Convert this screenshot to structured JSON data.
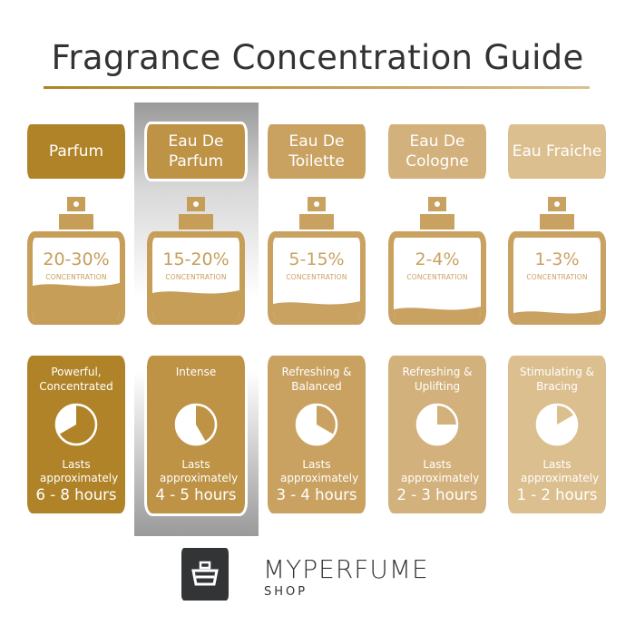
{
  "title": "Fragrance Concentration Guide",
  "columns": [
    {
      "name": "Parfum",
      "concentration": "20-30%",
      "concentration_label": "CONCENTRATION",
      "character": "Powerful, Concentrated",
      "lasts_label": "Lasts approximately",
      "duration": "6 - 8 hours",
      "duration_max_hours": 8,
      "color": "#b08328",
      "bottle_color": "#c69e58",
      "selected": false
    },
    {
      "name": "Eau De Parfum",
      "concentration": "15-20%",
      "concentration_label": "CONCENTRATION",
      "character": "Intense",
      "lasts_label": "Lasts approximately",
      "duration": "4 - 5 hours",
      "duration_max_hours": 5,
      "color": "#be9346",
      "bottle_color": "#c69e58",
      "selected": true
    },
    {
      "name": "Eau De Toilette",
      "concentration": "5-15%",
      "concentration_label": "CONCENTRATION",
      "character": "Refreshing & Balanced",
      "lasts_label": "Lasts approximately",
      "duration": "3 - 4 hours",
      "duration_max_hours": 4,
      "color": "#c9a262",
      "bottle_color": "#c9a262",
      "selected": false
    },
    {
      "name": "Eau De Cologne",
      "concentration": "2-4%",
      "concentration_label": "CONCENTRATION",
      "character": "Refreshing & Uplifting",
      "lasts_label": "Lasts approximately",
      "duration": "2 - 3 hours",
      "duration_max_hours": 3,
      "color": "#d3b17c",
      "bottle_color": "#c9a262",
      "selected": false
    },
    {
      "name": "Eau Fraiche",
      "concentration": "1-3%",
      "concentration_label": "CONCENTRATION",
      "character": "Stimulating & Bracing",
      "lasts_label": "Lasts approximately",
      "duration": "1 - 2 hours",
      "duration_max_hours": 2,
      "color": "#dcbf8f",
      "bottle_color": "#c9a262",
      "selected": false
    }
  ],
  "brand": {
    "name": "MYPERFUME",
    "sub": "SHOP",
    "logo_icon": "perfume-bottle-icon"
  }
}
